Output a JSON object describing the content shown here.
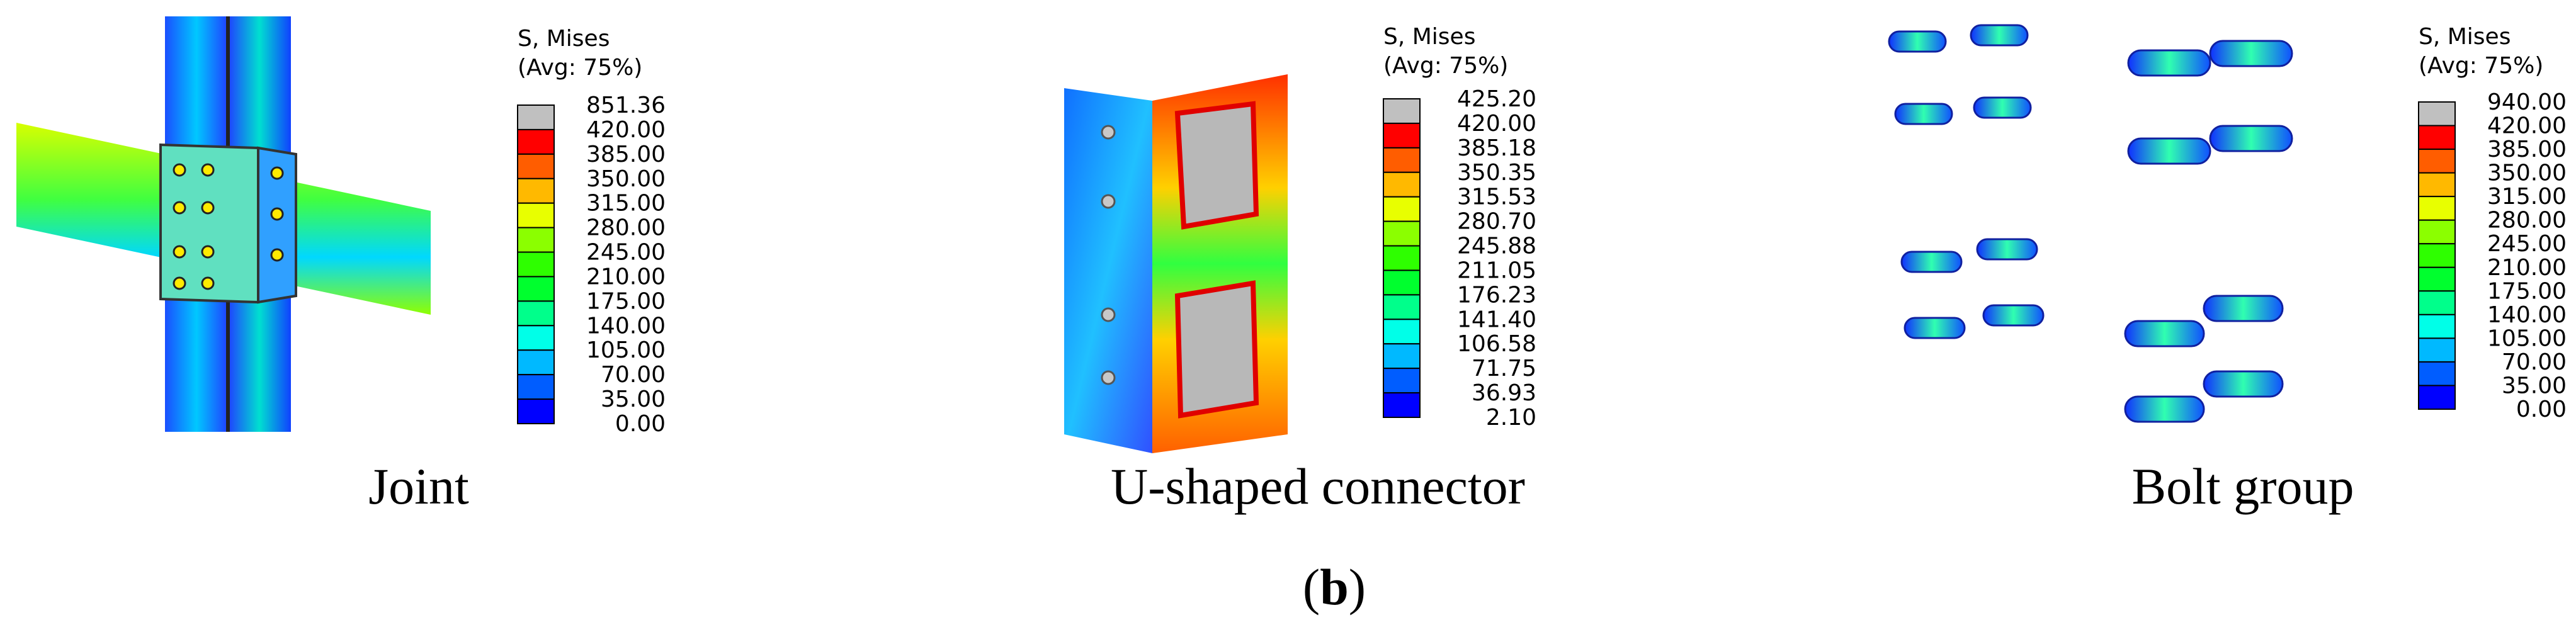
{
  "legend_colors": [
    "#c0c0c0",
    "#ff0000",
    "#ff5d00",
    "#ffb900",
    "#e8ff00",
    "#8bff00",
    "#2eff00",
    "#00ff2e",
    "#00ff8b",
    "#00ffe8",
    "#00b9ff",
    "#005dff",
    "#0000ff"
  ],
  "panels": [
    {
      "legend": {
        "title": [
          "S, Mises",
          "(Avg: 75%)"
        ],
        "labels": [
          "851.36",
          "420.00",
          "385.00",
          "350.00",
          "315.00",
          "280.00",
          "245.00",
          "210.00",
          "175.00",
          "140.00",
          "105.00",
          "70.00",
          "35.00",
          "0.00"
        ]
      },
      "caption": "Joint"
    },
    {
      "legend": {
        "title": [
          "S, Mises",
          "(Avg: 75%)"
        ],
        "labels": [
          "425.20",
          "420.00",
          "385.18",
          "350.35",
          "315.53",
          "280.70",
          "245.88",
          "211.05",
          "176.23",
          "141.40",
          "106.58",
          "71.75",
          "36.93",
          "2.10"
        ]
      },
      "caption": "U-shaped connector"
    },
    {
      "legend": {
        "title": [
          "S, Mises",
          "(Avg: 75%)"
        ],
        "labels": [
          "940.00",
          "420.00",
          "385.00",
          "350.00",
          "315.00",
          "280.00",
          "245.00",
          "210.00",
          "175.00",
          "140.00",
          "105.00",
          "70.00",
          "35.00",
          "0.00"
        ]
      },
      "caption": "Bolt group"
    }
  ],
  "figure_label": {
    "open": "(",
    "letter": "b",
    "close": ")"
  }
}
